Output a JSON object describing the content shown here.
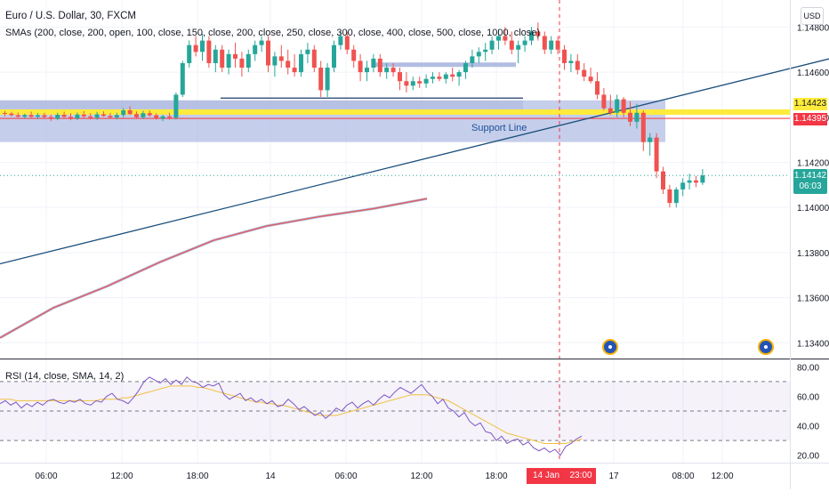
{
  "header": {
    "symbol_title": "Euro / U.S. Dollar, 30, FXCM",
    "sma_legend": "SMAs (200, close, 200, open, 100, close, 150, close, 200, close, 250, close, 300, close, 400, close, 500, close, 1000, close)",
    "currency": "USD"
  },
  "rsi_panel": {
    "legend": "RSI (14, close, SMA, 14, 2)"
  },
  "price_badges": {
    "upper_level": "1.14423",
    "lower_level": "1.14395",
    "current_price": "1.14142",
    "countdown": "06:03"
  },
  "annotations": {
    "support_line_label": "Support Line"
  },
  "time_axis": {
    "highlight_date": "14 Jan '22",
    "highlight_time": "23:00"
  },
  "colors": {
    "bull": "#26a69a",
    "bear": "#ef5350",
    "zone": "#b2bde3",
    "yellow_line": "#ffeb3b",
    "trendline": "#1c4f7c",
    "sma": "#e06060",
    "rsi_line": "#7e57c2",
    "rsi_sma": "#f0c040"
  },
  "chart_data": [
    {
      "type": "candlestick",
      "title": "",
      "ylim": [
        1.1333,
        1.1492
      ],
      "y_ticks": [
        "1.14800",
        "1.14600",
        "1.14400",
        "1.14200",
        "1.14000",
        "1.13800",
        "1.13600",
        "1.13400"
      ],
      "x_ticks": [
        "06:00",
        "12:00",
        "18:00",
        "14",
        "06:00",
        "12:00",
        "18:00",
        "17",
        "08:00",
        "12:00"
      ],
      "candles": [
        [
          1.14419,
          1.14428,
          1.14403,
          1.14416
        ],
        [
          1.14416,
          1.14424,
          1.14404,
          1.14409
        ],
        [
          1.14409,
          1.14421,
          1.14399,
          1.14402
        ],
        [
          1.14402,
          1.14416,
          1.14394,
          1.1441
        ],
        [
          1.1441,
          1.14425,
          1.14398,
          1.14402
        ],
        [
          1.14402,
          1.14419,
          1.14393,
          1.14409
        ],
        [
          1.14409,
          1.1442,
          1.14395,
          1.14401
        ],
        [
          1.14401,
          1.14412,
          1.14383,
          1.14394
        ],
        [
          1.14394,
          1.1442,
          1.14387,
          1.14411
        ],
        [
          1.14411,
          1.14425,
          1.14397,
          1.14402
        ],
        [
          1.14402,
          1.14418,
          1.14387,
          1.14395
        ],
        [
          1.14395,
          1.14421,
          1.14388,
          1.14412
        ],
        [
          1.14412,
          1.14428,
          1.14396,
          1.14404
        ],
        [
          1.14404,
          1.14418,
          1.1439,
          1.14398
        ],
        [
          1.14398,
          1.14424,
          1.14389,
          1.14413
        ],
        [
          1.14413,
          1.14427,
          1.14402,
          1.14406
        ],
        [
          1.14406,
          1.14419,
          1.14394,
          1.14399
        ],
        [
          1.14399,
          1.1442,
          1.1439,
          1.1441
        ],
        [
          1.1441,
          1.14441,
          1.14398,
          1.14431
        ],
        [
          1.14431,
          1.14448,
          1.1441,
          1.14414
        ],
        [
          1.14414,
          1.14426,
          1.14396,
          1.144
        ],
        [
          1.144,
          1.14429,
          1.14392,
          1.14418
        ],
        [
          1.14418,
          1.1443,
          1.14402,
          1.14409
        ],
        [
          1.14409,
          1.14418,
          1.14389,
          1.14394
        ],
        [
          1.14394,
          1.14412,
          1.14383,
          1.14404
        ],
        [
          1.14404,
          1.1442,
          1.1439,
          1.14398
        ],
        [
          1.14398,
          1.1451,
          1.1439,
          1.145
        ],
        [
          1.145,
          1.1465,
          1.1449,
          1.1464
        ],
        [
          1.1464,
          1.1474,
          1.1462,
          1.1472
        ],
        [
          1.1472,
          1.1476,
          1.1467,
          1.1469
        ],
        [
          1.1469,
          1.1477,
          1.1465,
          1.1474
        ],
        [
          1.1474,
          1.1476,
          1.1462,
          1.1464
        ],
        [
          1.1464,
          1.1472,
          1.146,
          1.147
        ],
        [
          1.147,
          1.1472,
          1.146,
          1.1462
        ],
        [
          1.1462,
          1.147,
          1.1459,
          1.1468
        ],
        [
          1.1468,
          1.1473,
          1.1462,
          1.1466
        ],
        [
          1.1466,
          1.1469,
          1.1458,
          1.1462
        ],
        [
          1.1462,
          1.147,
          1.146,
          1.1468
        ],
        [
          1.1468,
          1.1474,
          1.1465,
          1.1472
        ],
        [
          1.1472,
          1.1476,
          1.1469,
          1.1474
        ],
        [
          1.1474,
          1.1476,
          1.146,
          1.1463
        ],
        [
          1.1463,
          1.1469,
          1.1458,
          1.1467
        ],
        [
          1.1467,
          1.1472,
          1.1462,
          1.1465
        ],
        [
          1.1465,
          1.147,
          1.1459,
          1.1462
        ],
        [
          1.1462,
          1.1468,
          1.1458,
          1.146
        ],
        [
          1.146,
          1.147,
          1.1458,
          1.1468
        ],
        [
          1.1468,
          1.1473,
          1.1464,
          1.147
        ],
        [
          1.147,
          1.1472,
          1.146,
          1.1462
        ],
        [
          1.1462,
          1.1465,
          1.1449,
          1.1452
        ],
        [
          1.1452,
          1.1464,
          1.1449,
          1.1462
        ],
        [
          1.1462,
          1.1474,
          1.146,
          1.1472
        ],
        [
          1.1472,
          1.1478,
          1.147,
          1.1476
        ],
        [
          1.1476,
          1.1478,
          1.1468,
          1.147
        ],
        [
          1.147,
          1.1472,
          1.1462,
          1.1465
        ],
        [
          1.1465,
          1.1468,
          1.1456,
          1.146
        ],
        [
          1.146,
          1.1465,
          1.1456,
          1.1462
        ],
        [
          1.1462,
          1.1468,
          1.146,
          1.1466
        ],
        [
          1.1466,
          1.1468,
          1.1458,
          1.146
        ],
        [
          1.146,
          1.1464,
          1.1457,
          1.1462
        ],
        [
          1.1462,
          1.1464,
          1.1458,
          1.146
        ],
        [
          1.146,
          1.1462,
          1.1452,
          1.1456
        ],
        [
          1.1456,
          1.146,
          1.1451,
          1.1454
        ],
        [
          1.1454,
          1.1458,
          1.1452,
          1.1456
        ],
        [
          1.1456,
          1.1458,
          1.1453,
          1.1455
        ],
        [
          1.1455,
          1.1459,
          1.1453,
          1.1457
        ],
        [
          1.1457,
          1.146,
          1.1455,
          1.1458
        ],
        [
          1.1458,
          1.146,
          1.1456,
          1.1457
        ],
        [
          1.1457,
          1.146,
          1.1455,
          1.1459
        ],
        [
          1.1459,
          1.1462,
          1.1456,
          1.1458
        ],
        [
          1.1458,
          1.1461,
          1.1454,
          1.146
        ],
        [
          1.146,
          1.1465,
          1.1457,
          1.1464
        ],
        [
          1.1464,
          1.147,
          1.1462,
          1.1467
        ],
        [
          1.1467,
          1.1471,
          1.1464,
          1.1469
        ],
        [
          1.1469,
          1.1473,
          1.1465,
          1.147
        ],
        [
          1.147,
          1.1476,
          1.1468,
          1.1474
        ],
        [
          1.1474,
          1.1479,
          1.147,
          1.1476
        ],
        [
          1.1476,
          1.148,
          1.1472,
          1.1474
        ],
        [
          1.1474,
          1.1478,
          1.1468,
          1.147
        ],
        [
          1.147,
          1.1474,
          1.1464,
          1.1472
        ],
        [
          1.1472,
          1.1476,
          1.1469,
          1.1474
        ],
        [
          1.1474,
          1.148,
          1.1472,
          1.1478
        ],
        [
          1.1478,
          1.1482,
          1.1474,
          1.1476
        ],
        [
          1.1476,
          1.1478,
          1.1468,
          1.147
        ],
        [
          1.147,
          1.1476,
          1.1468,
          1.1474
        ],
        [
          1.1474,
          1.1476,
          1.1468,
          1.147
        ],
        [
          1.147,
          1.1472,
          1.1461,
          1.1464
        ],
        [
          1.1464,
          1.1468,
          1.146,
          1.1465
        ],
        [
          1.1465,
          1.1468,
          1.1459,
          1.1461
        ],
        [
          1.1461,
          1.1464,
          1.1456,
          1.1458
        ],
        [
          1.1458,
          1.1462,
          1.1455,
          1.1456
        ],
        [
          1.1456,
          1.146,
          1.1448,
          1.145
        ],
        [
          1.145,
          1.1453,
          1.1443,
          1.1444
        ],
        [
          1.1444,
          1.145,
          1.1441,
          1.1442
        ],
        [
          1.1442,
          1.145,
          1.144,
          1.1448
        ],
        [
          1.1448,
          1.1449,
          1.144,
          1.1442
        ],
        [
          1.1442,
          1.1447,
          1.1436,
          1.1438
        ],
        [
          1.1438,
          1.1446,
          1.1435,
          1.1442
        ],
        [
          1.1442,
          1.1443,
          1.1425,
          1.1429
        ],
        [
          1.1429,
          1.1433,
          1.1423,
          1.1431
        ],
        [
          1.1431,
          1.1433,
          1.1413,
          1.1416
        ],
        [
          1.1416,
          1.1418,
          1.1406,
          1.1408
        ],
        [
          1.1408,
          1.141,
          1.14,
          1.1402
        ],
        [
          1.1402,
          1.1409,
          1.14,
          1.1408
        ],
        [
          1.1408,
          1.1413,
          1.1405,
          1.1411
        ],
        [
          1.1411,
          1.1415,
          1.1408,
          1.1412
        ],
        [
          1.1412,
          1.1414,
          1.1409,
          1.1411
        ],
        [
          1.1411,
          1.1417,
          1.141,
          1.14142
        ]
      ],
      "sma_line": [
        [
          0,
          1.13422
        ],
        [
          60,
          1.13555
        ],
        [
          120,
          1.1365
        ],
        [
          180,
          1.13758
        ],
        [
          240,
          1.13854
        ],
        [
          300,
          1.13918
        ],
        [
          360,
          1.1396
        ],
        [
          420,
          1.13995
        ],
        [
          480,
          1.14039
        ]
      ],
      "zones": [
        [
          1.14475,
          1.1429
        ],
        [
          1.1446,
          1.14396
        ]
      ],
      "yellow_line": 1.14423,
      "red_line": 1.14395,
      "trendline": [
        [
          0,
          1.1375
        ],
        [
          932,
          1.14659
        ]
      ],
      "support_segment": 1.14485,
      "highlight_segment": 1.14635
    },
    {
      "type": "line",
      "title": "",
      "ylim": [
        15,
        85
      ],
      "y_ticks": [
        "80.00",
        "60.00",
        "40.00",
        "20.00"
      ],
      "levels": [
        70,
        50,
        30
      ],
      "series": [
        {
          "values": [
            55,
            57,
            54,
            56,
            52,
            55,
            53,
            56,
            54,
            57,
            58,
            56,
            55,
            57,
            56,
            58,
            55,
            54,
            57,
            56,
            60,
            62,
            58,
            57,
            55,
            59,
            64,
            70,
            73,
            71,
            69,
            72,
            68,
            71,
            68,
            73,
            70,
            69,
            66,
            68,
            67,
            69,
            61,
            58,
            60,
            62,
            57,
            59,
            56,
            58,
            55,
            57,
            53,
            54,
            58,
            55,
            51,
            53,
            50,
            47,
            49,
            45,
            48,
            52,
            50,
            54,
            56,
            52,
            55,
            57,
            54,
            58,
            61,
            59,
            63,
            66,
            64,
            62,
            65,
            68,
            63,
            60,
            55,
            58,
            52,
            50,
            46,
            49,
            43,
            40,
            42,
            36,
            35,
            30,
            33,
            28,
            30,
            31,
            27,
            29,
            25,
            23,
            25,
            22,
            24,
            20,
            26,
            28,
            31,
            33
          ]
        },
        {
          "values": [
            58,
            58,
            58,
            57,
            57,
            57,
            57,
            57,
            57,
            57,
            57,
            57,
            57,
            57,
            57,
            57,
            57,
            57,
            57,
            58,
            58,
            58,
            58,
            59,
            59,
            60,
            61,
            62,
            63,
            64,
            65,
            66,
            67,
            67,
            67,
            67,
            67,
            66,
            66,
            65,
            64,
            63,
            62,
            61,
            60,
            59,
            58,
            57,
            56,
            56,
            55,
            55,
            54,
            54,
            53,
            52,
            51,
            50,
            49,
            48,
            47,
            47,
            47,
            47,
            48,
            49,
            50,
            51,
            52,
            53,
            54,
            55,
            56,
            57,
            58,
            59,
            60,
            61,
            61,
            61,
            61,
            60,
            59,
            58,
            57,
            55,
            53,
            51,
            49,
            47,
            45,
            43,
            41,
            39,
            37,
            35,
            34,
            33,
            32,
            31,
            30,
            29,
            28,
            28,
            28,
            28,
            28,
            29,
            30,
            31
          ]
        }
      ]
    }
  ]
}
